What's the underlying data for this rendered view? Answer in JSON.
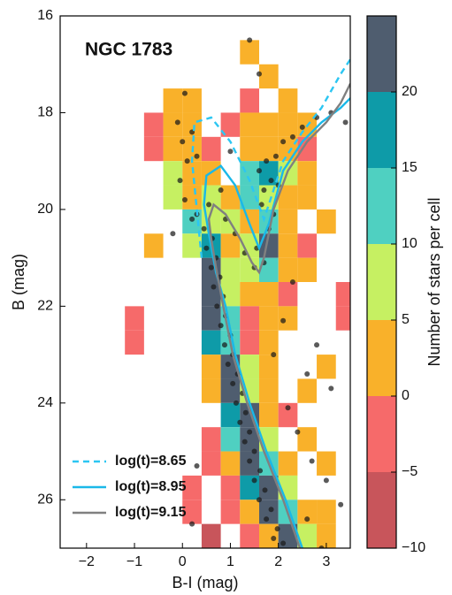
{
  "chart_data": {
    "type": "histogram2d",
    "annotation": "NGC 1783",
    "xlabel": "B-I (mag)",
    "ylabel": "B (mag)",
    "xlim": [
      -2.55,
      3.5
    ],
    "ylim": [
      27,
      16
    ],
    "xticks": [
      {
        "value": -2,
        "label": "−2"
      },
      {
        "value": -1,
        "label": "−1"
      },
      0,
      1,
      2,
      3
    ],
    "yticks": [
      16,
      18,
      20,
      22,
      24,
      26
    ],
    "xbins": [
      -1.2,
      -0.8,
      -0.4,
      0.0,
      0.4,
      0.8,
      1.2,
      1.6,
      2.0,
      2.4,
      2.8,
      3.2,
      3.6
    ],
    "ybins": [
      16.5,
      17,
      17.5,
      18,
      18.5,
      19,
      19.5,
      20,
      20.5,
      21,
      21.5,
      22,
      22.5,
      23,
      23.5,
      24,
      24.5,
      25,
      25.5,
      26,
      26.5,
      27
    ],
    "values": [
      [
        null,
        null,
        null,
        null,
        null,
        null,
        2,
        null,
        null,
        null,
        null,
        null
      ],
      [
        null,
        null,
        null,
        null,
        null,
        null,
        null,
        2,
        null,
        null,
        null,
        null
      ],
      [
        null,
        null,
        2,
        2,
        null,
        null,
        -2,
        null,
        2,
        null,
        null,
        null
      ],
      [
        null,
        -2,
        2,
        3,
        null,
        -2,
        3,
        4,
        3,
        2,
        null,
        null
      ],
      [
        null,
        -2,
        2,
        3,
        -2,
        null,
        4,
        3,
        2,
        -2,
        null,
        null
      ],
      [
        null,
        null,
        7,
        4,
        2,
        null,
        12,
        18,
        7,
        2,
        null,
        null
      ],
      [
        null,
        null,
        6,
        2,
        7,
        2,
        14,
        8,
        3,
        2,
        null,
        null
      ],
      [
        null,
        null,
        null,
        14,
        8,
        7,
        3,
        12,
        2,
        null,
        2,
        null
      ],
      [
        null,
        2,
        null,
        8,
        16,
        4,
        8,
        20,
        2,
        -2,
        null,
        null
      ],
      [
        null,
        null,
        null,
        null,
        20,
        8,
        6,
        14,
        2,
        2,
        null,
        null
      ],
      [
        null,
        null,
        null,
        null,
        22,
        7,
        2,
        4,
        -2,
        null,
        null,
        -2
      ],
      [
        -2,
        null,
        null,
        null,
        22,
        10,
        -3,
        3,
        2,
        null,
        null,
        -2
      ],
      [
        -2,
        null,
        null,
        null,
        18,
        12,
        -2,
        4,
        null,
        null,
        null,
        null
      ],
      [
        null,
        null,
        null,
        null,
        2,
        22,
        5,
        2,
        null,
        null,
        2,
        null
      ],
      [
        null,
        null,
        null,
        null,
        2,
        22,
        8,
        2,
        null,
        2,
        null,
        null
      ],
      [
        null,
        null,
        null,
        null,
        null,
        18,
        20,
        2,
        -2,
        null,
        null,
        null
      ],
      [
        null,
        null,
        null,
        null,
        -2,
        14,
        22,
        6,
        null,
        2,
        null,
        null
      ],
      [
        null,
        null,
        null,
        null,
        -2,
        4,
        22,
        12,
        2,
        null,
        2,
        null
      ],
      [
        null,
        null,
        null,
        -2,
        null,
        -2,
        18,
        22,
        6,
        null,
        null,
        null
      ],
      [
        null,
        null,
        null,
        -2,
        null,
        -2,
        4,
        22,
        14,
        2,
        2,
        null
      ],
      [
        null,
        null,
        null,
        null,
        -7,
        null,
        -2,
        2,
        22,
        8,
        2,
        null
      ]
    ],
    "colorbar": {
      "label": "Number of stars per cell",
      "boundaries": [
        -10,
        -5,
        0,
        5,
        10,
        15,
        20,
        25
      ],
      "colors": [
        "#c8555b",
        "#f66a6a",
        "#f9b12a",
        "#c6f062",
        "#4fd0c1",
        "#0e9ba8",
        "#4f5d6f"
      ],
      "ticks": [
        {
          "value": -10,
          "label": "−10"
        },
        {
          "value": -5,
          "label": "−5"
        },
        0,
        5,
        10,
        15,
        20
      ]
    },
    "points": {
      "color": "#1a1a1a",
      "x": [
        0.62,
        0.5,
        0.7,
        0.6,
        0.78,
        0.65,
        0.85,
        0.72,
        0.9,
        0.8,
        1.0,
        0.88,
        1.05,
        0.95,
        1.15,
        1.05,
        1.25,
        1.12,
        1.32,
        1.2,
        1.4,
        1.3,
        1.5,
        1.4,
        1.62,
        1.5,
        1.72,
        1.6,
        1.85,
        1.75,
        1.98,
        1.9,
        2.1,
        0.3,
        0.45,
        0.2,
        0.55,
        0.9,
        1.1,
        1.3,
        1.5,
        1.7,
        1.55,
        1.6,
        1.75,
        1.85,
        1.7,
        1.95,
        2.1,
        2.3,
        2.5,
        2.8,
        3.1,
        3.4,
        1.9,
        1.8,
        1.65,
        2.0,
        -0.1,
        0.0,
        0.1,
        -0.05,
        0.05,
        0.2,
        0.3,
        0.05,
        -0.2,
        0.8,
        1.0,
        1.4,
        1.6,
        2.3,
        2.1,
        2.8,
        2.6,
        3.1,
        2.4,
        2.7,
        3.0,
        3.3,
        2.6,
        0.3,
        0.2,
        2.9,
        2.2,
        1.9
      ],
      "y": [
        20.6,
        20.8,
        21,
        21.2,
        21.4,
        21.6,
        21.8,
        22,
        22.2,
        22.4,
        22.6,
        22.8,
        23,
        23.2,
        23.4,
        23.6,
        23.8,
        24,
        24.2,
        24.4,
        24.6,
        24.8,
        25,
        25.2,
        25.4,
        25.6,
        25.8,
        26,
        26.2,
        26.4,
        26.6,
        26.8,
        26.9,
        20.1,
        20.4,
        20.2,
        19.9,
        20.2,
        20.5,
        20.9,
        21.2,
        21.1,
        20.8,
        19.2,
        19.0,
        19.4,
        19.6,
        18.9,
        18.6,
        18.5,
        18.3,
        18.1,
        18.0,
        18.2,
        20.1,
        20.4,
        19.9,
        19.5,
        18.2,
        18.6,
        19.0,
        19.4,
        19.8,
        18.4,
        18.9,
        17.6,
        20.5,
        19.6,
        18.8,
        16.5,
        17.2,
        21.5,
        22.3,
        22.8,
        23.4,
        23.7,
        24.6,
        25.2,
        25.6,
        26.1,
        26.4,
        25.3,
        26.5,
        27.0,
        24.1,
        23.0
      ]
    },
    "legend": "lower left",
    "series": [
      {
        "name": "log(t)=8.65",
        "color": "#2cc6f2",
        "linestyle": "dashed",
        "x": [
          0.4,
          0.3,
          0.2,
          0.25,
          0.6,
          1.0,
          1.4,
          1.7,
          1.9,
          2.1,
          2.5,
          2.9,
          3.3,
          3.5
        ],
        "y": [
          21,
          20,
          19,
          18.2,
          18.1,
          18.6,
          19.4,
          20.2,
          19.6,
          19.0,
          18.4,
          17.9,
          17.2,
          16.9
        ]
      },
      {
        "name": "log(t)=8.95",
        "color": "#1ab8e8",
        "linestyle": "solid",
        "x": [
          2.5,
          2.15,
          1.75,
          1.4,
          1.1,
          0.9,
          0.7,
          0.55,
          0.45,
          0.5,
          0.8,
          1.1,
          1.4,
          1.6,
          1.8,
          2.1,
          2.5,
          2.9,
          3.3,
          3.5
        ],
        "y": [
          27,
          26,
          25,
          24,
          23,
          22,
          21.3,
          20.5,
          19.9,
          19.3,
          19.1,
          19.5,
          20.3,
          20.8,
          20.3,
          19.2,
          18.6,
          18.2,
          17.9,
          17.7
        ]
      },
      {
        "name": "log(t)=9.15",
        "color": "#808080",
        "linestyle": "solid",
        "x": [
          2.45,
          2.1,
          1.7,
          1.35,
          1.05,
          0.85,
          0.7,
          0.6,
          0.55,
          0.65,
          0.9,
          1.2,
          1.45,
          1.6,
          1.7,
          1.9,
          2.2,
          2.6,
          3.0,
          3.3,
          3.5
        ],
        "y": [
          27,
          26,
          25,
          24,
          23,
          22,
          21.2,
          20.6,
          20.2,
          19.9,
          20.1,
          20.6,
          21.1,
          21.3,
          21.0,
          20.0,
          19.2,
          18.6,
          18.2,
          17.8,
          17.4
        ]
      }
    ]
  }
}
